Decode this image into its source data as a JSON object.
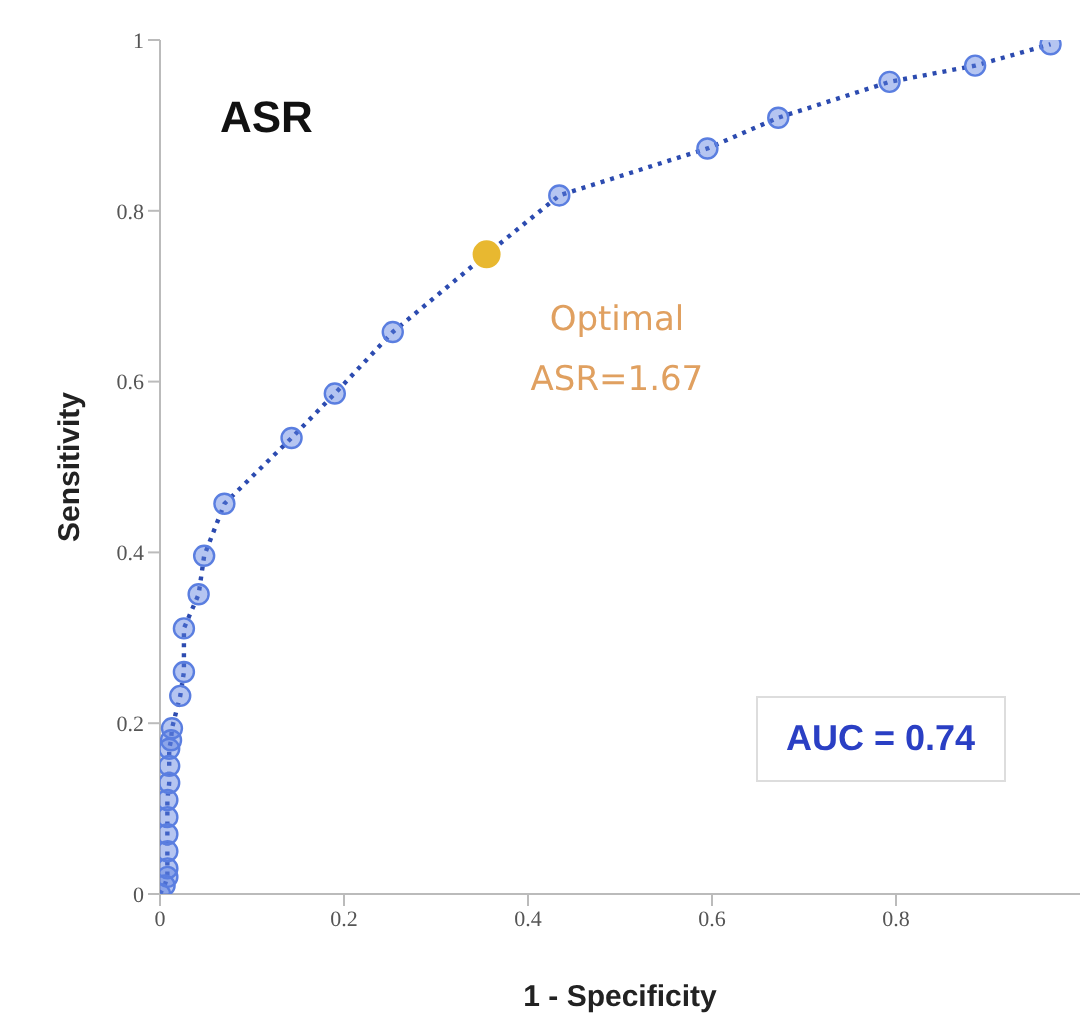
{
  "chart_data": {
    "type": "scatter",
    "title": "ASR",
    "xlabel": "1 - Specificity",
    "ylabel": "Sensitivity",
    "xlim": [
      0,
      1
    ],
    "ylim": [
      0,
      1
    ],
    "xticks": [
      0,
      0.2,
      0.4,
      0.6,
      0.8
    ],
    "yticks": [
      0,
      0.2,
      0.4,
      0.6,
      0.8,
      1
    ],
    "grid": false,
    "legend": false,
    "marker": "circle",
    "series": [
      {
        "type": "line",
        "line_style": "dotted",
        "color": "#5a7ee0",
        "x": [
          0,
          0.005,
          0.008,
          0.008,
          0.008,
          0.008,
          0.008,
          0.008,
          0.01,
          0.01,
          0.01,
          0.012,
          0.013,
          0.022,
          0.026,
          0.026,
          0.042,
          0.048,
          0.07,
          0.143,
          0.19,
          0.253,
          0.355,
          0.434,
          0.595,
          0.672,
          0.793,
          0.886,
          0.968
        ],
        "values": [
          0,
          0.01,
          0.02,
          0.03,
          0.05,
          0.07,
          0.09,
          0.11,
          0.13,
          0.15,
          0.17,
          0.18,
          0.194,
          0.232,
          0.26,
          0.311,
          0.351,
          0.396,
          0.457,
          0.534,
          0.586,
          0.658,
          0.749,
          0.818,
          0.873,
          0.909,
          0.951,
          0.97,
          0.995
        ]
      },
      {
        "type": "scatter",
        "color": "#e8b830",
        "x": [
          0.355
        ],
        "values": [
          0.749
        ]
      }
    ],
    "annotations": [
      {
        "text": "Optimal\nASR=1.67",
        "x": 0.355,
        "y": 0.749
      },
      "AUC = 0.74"
    ]
  }
}
